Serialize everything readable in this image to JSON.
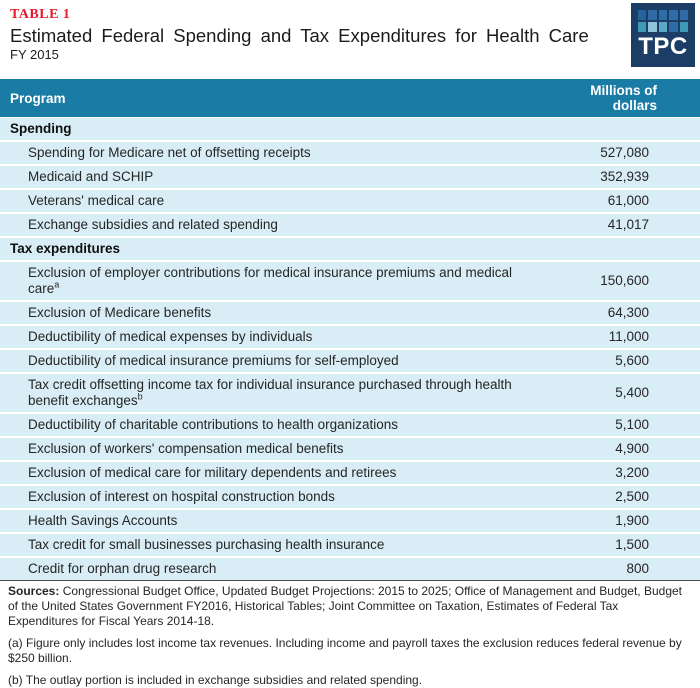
{
  "header": {
    "table_label": "TABLE 1",
    "title": "Estimated Federal Spending and Tax Expenditures for Health Care",
    "subtitle": "FY 2015",
    "logo_text": "TPC",
    "logo_grid_colors": [
      "#27639b",
      "#2e6ca6",
      "#2e6ca6",
      "#2e6ca6",
      "#2e6ca6",
      "#3f9ab8",
      "#8fc3dc",
      "#5aaac6",
      "#2e6ca6",
      "#3f9ab8"
    ]
  },
  "colors": {
    "header_bar": "#1a7ba5",
    "row_background": "#d8edf5",
    "table_label_red": "#e8182d",
    "logo_navy": "#1c3e66"
  },
  "chart_data": {
    "type": "table",
    "title": "Estimated Federal Spending and Tax Expenditures for Health Care",
    "subtitle": "FY 2015",
    "unit": "Millions of dollars",
    "columns": [
      "Program",
      "Millions of dollars"
    ],
    "sections": [
      {
        "label": "Spending",
        "rows": [
          {
            "program": "Spending for Medicare net of offsetting receipts",
            "value": 527080,
            "display": "527,080"
          },
          {
            "program": "Medicaid and SCHIP",
            "value": 352939,
            "display": "352,939"
          },
          {
            "program": "Veterans' medical care",
            "value": 61000,
            "display": "61,000"
          },
          {
            "program": "Exchange subsidies and related spending",
            "value": 41017,
            "display": "41,017"
          }
        ]
      },
      {
        "label": "Tax expenditures",
        "rows": [
          {
            "program": "Exclusion of employer contributions for medical insurance premiums and medical care",
            "sup": "a",
            "value": 150600,
            "display": "150,600"
          },
          {
            "program": "Exclusion of Medicare benefits",
            "value": 64300,
            "display": "64,300"
          },
          {
            "program": "Deductibility of medical expenses by individuals",
            "value": 11000,
            "display": "11,000"
          },
          {
            "program": "Deductibility of medical insurance premiums for self-employed",
            "value": 5600,
            "display": "5,600"
          },
          {
            "program": "Tax credit offsetting income tax for individual insurance purchased through health benefit exchanges",
            "sup": "b",
            "value": 5400,
            "display": "5,400"
          },
          {
            "program": "Deductibility of charitable contributions to health organizations",
            "value": 5100,
            "display": "5,100"
          },
          {
            "program": "Exclusion of workers' compensation medical benefits",
            "value": 4900,
            "display": "4,900"
          },
          {
            "program": "Exclusion of medical care for military dependents and retirees",
            "value": 3200,
            "display": "3,200"
          },
          {
            "program": "Exclusion of interest on hospital construction bonds",
            "value": 2500,
            "display": "2,500"
          },
          {
            "program": "Health Savings Accounts",
            "value": 1900,
            "display": "1,900"
          },
          {
            "program": "Tax credit for small businesses purchasing health insurance",
            "value": 1500,
            "display": "1,500"
          },
          {
            "program": "Credit for orphan drug research",
            "value": 800,
            "display": "800"
          }
        ]
      }
    ]
  },
  "footnotes": {
    "sources_label": "Sources:",
    "sources_text": " Congressional Budget Office, Updated Budget Projections: 2015 to 2025; Office of Management and Budget, Budget of the United States Government FY2016, Historical Tables; Joint Committee on Taxation, Estimates of Federal Tax Expenditures for Fiscal Years 2014-18.",
    "note_a": "(a) Figure only includes lost income tax revenues.  Including income and payroll taxes the exclusion reduces federal revenue by $250 billion.",
    "note_b": "(b) The outlay portion is included in exchange subsidies and related spending."
  }
}
